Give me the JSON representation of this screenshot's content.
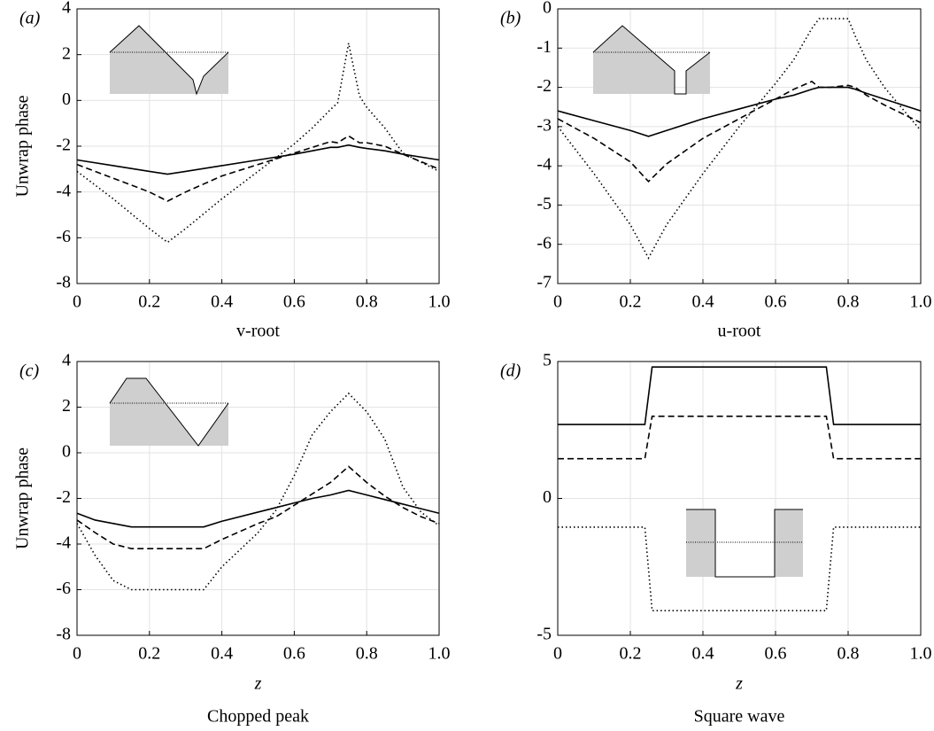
{
  "chart_data": [
    {
      "type": "line",
      "panel_label": "(a)",
      "ylabel": "Unwrap phase",
      "xlabel": "v-root",
      "x": [
        0,
        0.1,
        0.2,
        0.25,
        0.3,
        0.4,
        0.5,
        0.6,
        0.65,
        0.7,
        0.72,
        0.75,
        0.78,
        0.8,
        0.85,
        0.9,
        1.0
      ],
      "series": [
        {
          "color": "#000000",
          "style": "solid",
          "values": [
            -2.6,
            -2.85,
            -3.1,
            -3.22,
            -3.1,
            -2.85,
            -2.6,
            -2.35,
            -2.2,
            -2.05,
            -2.05,
            -1.95,
            -2.05,
            -2.1,
            -2.2,
            -2.35,
            -2.6
          ]
        },
        {
          "color": "#000000",
          "style": "dashed",
          "values": [
            -2.8,
            -3.4,
            -4.0,
            -4.4,
            -4.0,
            -3.3,
            -2.8,
            -2.3,
            -2.05,
            -1.8,
            -1.85,
            -1.55,
            -1.85,
            -1.85,
            -2.0,
            -2.35,
            -3.0
          ]
        },
        {
          "color": "#000000",
          "style": "dotted",
          "values": [
            -3.1,
            -4.3,
            -5.6,
            -6.2,
            -5.6,
            -4.3,
            -3.1,
            -1.9,
            -1.2,
            -0.4,
            -0.1,
            2.5,
            0.2,
            -0.3,
            -1.2,
            -2.3,
            -3.1
          ]
        }
      ],
      "xlim": [
        0,
        1
      ],
      "xticks": [
        0,
        0.2,
        0.4,
        0.6,
        0.8,
        {
          "value": 1,
          "label": "1.0"
        }
      ],
      "ylim": [
        -8,
        4
      ],
      "yticks": [
        -8,
        -6,
        -4,
        -2,
        0,
        2,
        4
      ],
      "grid": true
    },
    {
      "type": "line",
      "panel_label": "(b)",
      "xlabel": "u-root",
      "x": [
        0,
        0.1,
        0.2,
        0.25,
        0.3,
        0.4,
        0.5,
        0.6,
        0.65,
        0.7,
        0.72,
        0.75,
        0.8,
        0.82,
        0.85,
        0.9,
        1.0
      ],
      "series": [
        {
          "color": "#000000",
          "style": "solid",
          "values": [
            -2.6,
            -2.85,
            -3.1,
            -3.25,
            -3.1,
            -2.8,
            -2.55,
            -2.3,
            -2.2,
            -2.05,
            -2.0,
            -2.0,
            -2.0,
            -2.05,
            -2.15,
            -2.3,
            -2.6
          ]
        },
        {
          "color": "#000000",
          "style": "dashed",
          "values": [
            -2.8,
            -3.3,
            -3.9,
            -4.4,
            -3.95,
            -3.3,
            -2.8,
            -2.3,
            -2.05,
            -1.85,
            -2.0,
            -2.0,
            -1.95,
            -2.0,
            -2.2,
            -2.45,
            -2.9
          ]
        },
        {
          "color": "#000000",
          "style": "dotted",
          "values": [
            -3.0,
            -4.2,
            -5.5,
            -6.35,
            -5.5,
            -4.2,
            -3.0,
            -1.9,
            -1.3,
            -0.5,
            -0.25,
            -0.25,
            -0.25,
            -0.7,
            -1.3,
            -2.0,
            -3.1
          ]
        }
      ],
      "xlim": [
        0,
        1
      ],
      "xticks": [
        0,
        0.2,
        0.4,
        0.6,
        0.8,
        {
          "value": 1,
          "label": "1.0"
        }
      ],
      "ylim": [
        -7,
        0
      ],
      "yticks": [
        -7,
        -6,
        -5,
        -4,
        -3,
        -2,
        -1,
        0
      ],
      "grid": true
    },
    {
      "type": "line",
      "panel_label": "(c)",
      "ylabel": "Unwrap phase",
      "xlabel": "z",
      "subtitle": "Chopped peak",
      "x": [
        0,
        0.05,
        0.1,
        0.15,
        0.35,
        0.4,
        0.5,
        0.55,
        0.6,
        0.65,
        0.7,
        0.75,
        0.8,
        0.85,
        0.9,
        0.95,
        1.0
      ],
      "series": [
        {
          "color": "#000000",
          "style": "solid",
          "values": [
            -2.65,
            -2.95,
            -3.1,
            -3.25,
            -3.25,
            -3.0,
            -2.6,
            -2.4,
            -2.2,
            -2.0,
            -1.85,
            -1.65,
            -1.85,
            -2.05,
            -2.25,
            -2.45,
            -2.65
          ]
        },
        {
          "color": "#000000",
          "style": "dashed",
          "values": [
            -2.95,
            -3.5,
            -4.0,
            -4.2,
            -4.2,
            -3.8,
            -3.1,
            -2.8,
            -2.3,
            -1.8,
            -1.3,
            -0.6,
            -1.3,
            -1.9,
            -2.4,
            -2.8,
            -3.1
          ]
        },
        {
          "color": "#000000",
          "style": "dotted",
          "values": [
            -3.1,
            -4.5,
            -5.6,
            -6.0,
            -6.0,
            -5.0,
            -3.5,
            -2.5,
            -1.0,
            0.8,
            1.8,
            2.6,
            1.8,
            0.6,
            -1.5,
            -2.6,
            -3.2
          ]
        }
      ],
      "xlim": [
        0,
        1
      ],
      "xticks": [
        0,
        0.2,
        0.4,
        0.6,
        0.8,
        {
          "value": 1,
          "label": "1.0"
        }
      ],
      "ylim": [
        -8,
        4
      ],
      "yticks": [
        -8,
        -6,
        -4,
        -2,
        0,
        2,
        4
      ],
      "grid": true
    },
    {
      "type": "line",
      "panel_label": "(d)",
      "xlabel": "z",
      "subtitle": "Square wave",
      "x": [
        0,
        0.24,
        0.26,
        0.74,
        0.76,
        1.0
      ],
      "series": [
        {
          "color": "#000000",
          "style": "solid",
          "values": [
            2.7,
            2.7,
            4.8,
            4.8,
            2.7,
            2.7
          ]
        },
        {
          "color": "#000000",
          "style": "dashed",
          "values": [
            1.45,
            1.45,
            3.0,
            3.0,
            1.45,
            1.45
          ]
        },
        {
          "color": "#000000",
          "style": "dotted",
          "values": [
            -1.05,
            -1.05,
            -4.1,
            -4.1,
            -1.05,
            -1.05
          ]
        }
      ],
      "xlim": [
        0,
        1
      ],
      "xticks": [
        0,
        0.2,
        0.4,
        0.6,
        0.8,
        {
          "value": 1,
          "label": "1.0"
        }
      ],
      "ylim": [
        -5,
        5
      ],
      "yticks": [
        -5,
        0,
        5
      ],
      "grid": true
    }
  ]
}
